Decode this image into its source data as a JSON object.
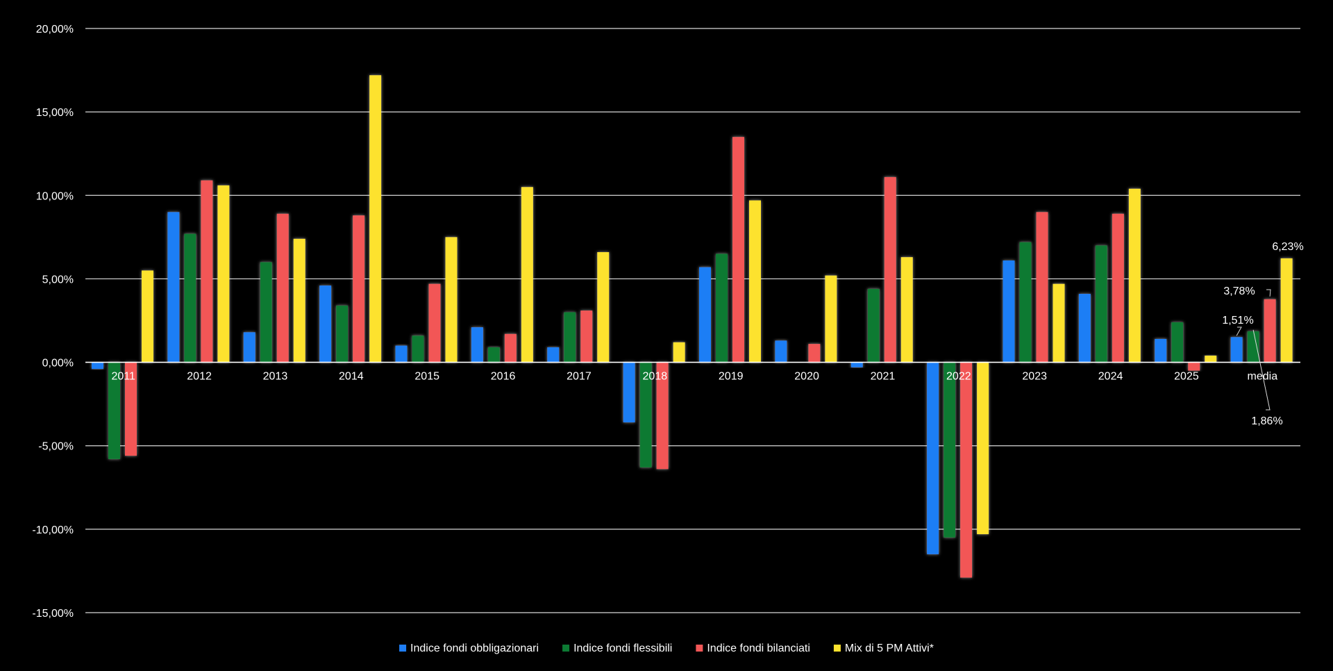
{
  "chart_data": {
    "type": "bar",
    "categories": [
      "2011",
      "2012",
      "2013",
      "2014",
      "2015",
      "2016",
      "2017",
      "2018",
      "2019",
      "2020",
      "2021",
      "2022",
      "2023",
      "2024",
      "2025",
      "media"
    ],
    "y_ticks": [
      "20,00%",
      "15,00%",
      "10,00%",
      "5,00%",
      "0,00%",
      "-5,00%",
      "-10,00%",
      "-15,00%"
    ],
    "ylim": [
      -15,
      20
    ],
    "grid": true,
    "legend_position": "bottom",
    "series": [
      {
        "name": "Indice fondi obbligazionari",
        "color": "#1f7ef5",
        "values": [
          -0.4,
          9.0,
          1.8,
          4.6,
          1.0,
          2.1,
          0.9,
          -3.6,
          5.7,
          1.3,
          -0.3,
          -11.5,
          6.1,
          4.1,
          1.4,
          1.51
        ]
      },
      {
        "name": "Indice fondi flessibili",
        "color": "#0c7a33",
        "values": [
          -5.8,
          7.7,
          6.0,
          3.4,
          1.6,
          0.9,
          3.0,
          -6.3,
          6.5,
          0.0,
          4.4,
          -10.5,
          7.2,
          7.0,
          2.4,
          1.86
        ]
      },
      {
        "name": "Indice fondi bilanciati",
        "color": "#f25757",
        "values": [
          -5.6,
          10.9,
          8.9,
          8.8,
          4.7,
          1.7,
          3.1,
          -6.4,
          13.5,
          1.1,
          11.1,
          -12.9,
          9.0,
          8.9,
          -0.5,
          3.78
        ]
      },
      {
        "name": "Mix di 5 PM Attivi*",
        "color": "#fde22e",
        "values": [
          5.5,
          10.6,
          7.4,
          17.2,
          7.5,
          10.5,
          6.6,
          1.2,
          9.7,
          5.2,
          6.3,
          -10.3,
          4.7,
          10.4,
          0.4,
          6.23
        ]
      }
    ],
    "annotations": [
      {
        "series": 0,
        "category": "media",
        "text": "1,51%"
      },
      {
        "series": 1,
        "category": "media",
        "text": "1,86%"
      },
      {
        "series": 2,
        "category": "media",
        "text": "3,78%"
      },
      {
        "series": 3,
        "category": "media",
        "text": "6,23%"
      }
    ]
  }
}
